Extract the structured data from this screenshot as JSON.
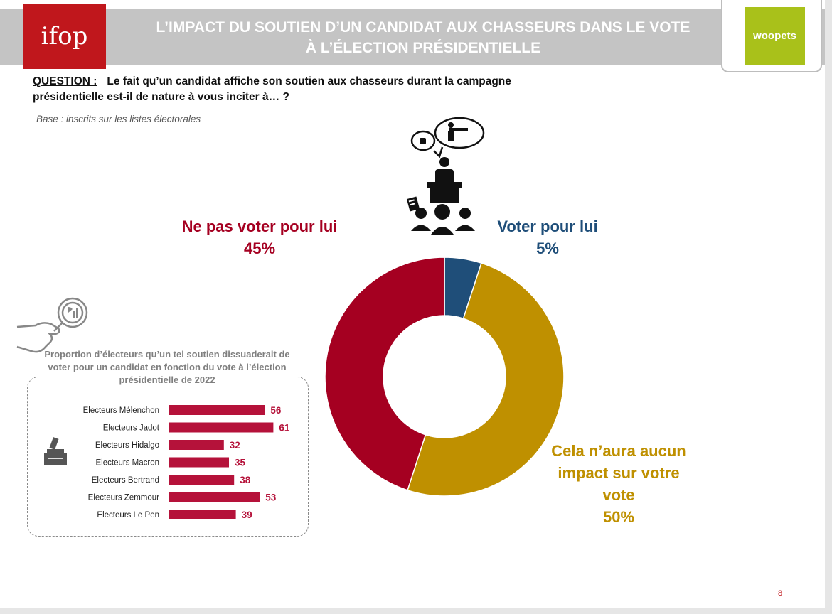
{
  "header": {
    "logo_text": "ifop",
    "title_line1": "L’IMPACT DU SOUTIEN D’UN CANDIDAT AUX CHASSEURS DANS LE VOTE",
    "title_line2": "À L’ÉLECTION PRÉSIDENTIELLE",
    "partner_logo_text": "woopets"
  },
  "question": {
    "label": "QUESTION :",
    "text": "Le fait qu’un candidat affiche son soutien aux chasseurs durant la campagne présidentielle est-il de nature à vous inciter à… ?",
    "base": "Base : inscrits sur les listes électorales"
  },
  "page_number": "8",
  "colors": {
    "red": "#a50021",
    "blue": "#1f4e79",
    "gold": "#bf9000",
    "bar_red": "#b5123a"
  },
  "icons": [
    "ifop-logo",
    "woopets-logo",
    "speaker-podium-icon",
    "magnifier-hand-icon",
    "ballot-box-icon"
  ],
  "chart_data": [
    {
      "type": "pie",
      "donut": true,
      "slices": [
        {
          "label": "Voter pour lui",
          "value": 5,
          "display": "5%",
          "color": "#1f4e79"
        },
        {
          "label": "Cela n’aura aucun impact sur votre vote",
          "value": 50,
          "display": "50%",
          "color": "#bf9000"
        },
        {
          "label": "Ne pas voter pour lui",
          "value": 45,
          "display": "45%",
          "color": "#a50021"
        }
      ]
    },
    {
      "type": "bar",
      "orientation": "horizontal",
      "title": "Proportion d’électeurs qu’un tel soutien dissuaderait de voter pour un candidat en fonction du vote à l’élection présidentielle de 2022",
      "categories": [
        "Electeurs Mélenchon",
        "Electeurs Jadot",
        "Electeurs Hidalgo",
        "Electeurs Macron",
        "Electeurs Bertrand",
        "Electeurs Zemmour",
        "Electeurs Le Pen"
      ],
      "values": [
        56,
        61,
        32,
        35,
        38,
        53,
        39
      ],
      "xlim": [
        0,
        100
      ]
    }
  ]
}
